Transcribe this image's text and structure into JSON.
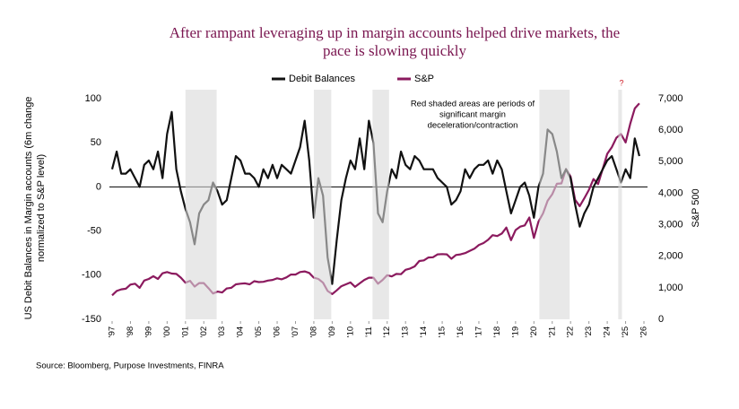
{
  "chart_data": {
    "type": "line",
    "title": [
      "After rampant leveraging up in margin accounts helped drive markets, the",
      "pace is slowing quickly"
    ],
    "y_label": [
      "US Debit Balances in Margin accounts (6m change",
      "normalized to S&P level)"
    ],
    "y2_label": "S&P 500",
    "annotation": [
      "Red shaded areas are periods of",
      "significant margin",
      "deceleration/contraction"
    ],
    "question_mark": "?",
    "source": "Source: Bloomberg, Purpose Investments, FINRA",
    "x": [
      1997.0,
      1997.25,
      1997.5,
      1997.75,
      1998.0,
      1998.25,
      1998.5,
      1998.75,
      1999.0,
      1999.25,
      1999.5,
      1999.75,
      2000.0,
      2000.25,
      2000.5,
      2000.75,
      2001.0,
      2001.25,
      2001.5,
      2001.75,
      2002.0,
      2002.25,
      2002.5,
      2002.75,
      2003.0,
      2003.25,
      2003.5,
      2003.75,
      2004.0,
      2004.25,
      2004.5,
      2004.75,
      2005.0,
      2005.25,
      2005.5,
      2005.75,
      2006.0,
      2006.25,
      2006.5,
      2006.75,
      2007.0,
      2007.25,
      2007.5,
      2007.75,
      2008.0,
      2008.25,
      2008.5,
      2008.75,
      2009.0,
      2009.25,
      2009.5,
      2009.75,
      2010.0,
      2010.25,
      2010.5,
      2010.75,
      2011.0,
      2011.25,
      2011.5,
      2011.75,
      2012.0,
      2012.25,
      2012.5,
      2012.75,
      2013.0,
      2013.25,
      2013.5,
      2013.75,
      2014.0,
      2014.25,
      2014.5,
      2014.75,
      2015.0,
      2015.25,
      2015.5,
      2015.75,
      2016.0,
      2016.25,
      2016.5,
      2016.75,
      2017.0,
      2017.25,
      2017.5,
      2017.75,
      2018.0,
      2018.25,
      2018.5,
      2018.75,
      2019.0,
      2019.25,
      2019.5,
      2019.75,
      2020.0,
      2020.25,
      2020.5,
      2020.75,
      2021.0,
      2021.25,
      2021.5,
      2021.75,
      2022.0,
      2022.25,
      2022.5,
      2022.75,
      2023.0,
      2023.25,
      2023.5,
      2023.75,
      2024.0,
      2024.25,
      2024.5,
      2024.75,
      2025.0,
      2025.25,
      2025.5,
      2025.75
    ],
    "series": [
      {
        "name": "Debit Balances",
        "color": "#111111",
        "values": [
          20,
          40,
          15,
          15,
          20,
          10,
          0,
          25,
          30,
          20,
          40,
          10,
          60,
          85,
          20,
          -5,
          -25,
          -40,
          -65,
          -30,
          -20,
          -15,
          5,
          -5,
          -20,
          -15,
          10,
          35,
          30,
          15,
          15,
          10,
          0,
          20,
          10,
          25,
          10,
          25,
          20,
          15,
          30,
          45,
          75,
          30,
          -35,
          10,
          -10,
          -80,
          -110,
          -60,
          -15,
          10,
          30,
          20,
          55,
          20,
          75,
          50,
          -30,
          -40,
          -5,
          20,
          10,
          40,
          25,
          20,
          35,
          30,
          20,
          20,
          20,
          10,
          5,
          0,
          -20,
          -15,
          -5,
          20,
          10,
          20,
          25,
          25,
          30,
          15,
          30,
          20,
          -5,
          -30,
          -15,
          0,
          5,
          -10,
          -35,
          0,
          15,
          65,
          60,
          40,
          10,
          20,
          10,
          -20,
          -45,
          -30,
          -20,
          0,
          10,
          20,
          30,
          35,
          20,
          5,
          20,
          10,
          55,
          35
        ]
      },
      {
        "name": "S&P",
        "color": "#8b1a5e",
        "axis": "y2",
        "values": [
          760,
          900,
          950,
          970,
          1100,
          1130,
          1000,
          1230,
          1280,
          1370,
          1280,
          1460,
          1500,
          1450,
          1440,
          1320,
          1160,
          1220,
          1040,
          1150,
          1150,
          990,
          820,
          880,
          850,
          980,
          1000,
          1110,
          1130,
          1140,
          1110,
          1210,
          1180,
          1190,
          1230,
          1250,
          1300,
          1270,
          1330,
          1420,
          1420,
          1500,
          1520,
          1470,
          1320,
          1280,
          1160,
          900,
          800,
          920,
          1050,
          1110,
          1170,
          1030,
          1140,
          1250,
          1320,
          1320,
          1130,
          1250,
          1400,
          1360,
          1440,
          1430,
          1570,
          1610,
          1680,
          1850,
          1870,
          1960,
          1970,
          2060,
          2070,
          2060,
          1920,
          2040,
          2060,
          2100,
          2170,
          2240,
          2360,
          2420,
          2520,
          2670,
          2640,
          2720,
          2910,
          2510,
          2830,
          2940,
          2980,
          3230,
          2580,
          3100,
          3360,
          3760,
          3970,
          4300,
          4310,
          4770,
          4530,
          3790,
          3590,
          3840,
          4110,
          4450,
          4290,
          4770,
          5250,
          5460,
          5760,
          5880,
          5610,
          6200,
          6690,
          6850
        ]
      }
    ],
    "shaded_regions": [
      [
        2001.0,
        2002.7
      ],
      [
        2008.0,
        2008.95
      ],
      [
        2011.2,
        2012.1
      ],
      [
        2020.3,
        2021.95
      ],
      [
        2024.6,
        2024.8
      ]
    ],
    "shade_color": "#d9d9d9",
    "xlim": [
      1997,
      2026
    ],
    "xticks": [
      {
        "value": 1997,
        "label": "'97"
      },
      {
        "value": 1998,
        "label": "'98"
      },
      {
        "value": 1999,
        "label": "'99"
      },
      {
        "value": 2000,
        "label": "'00"
      },
      {
        "value": 2001,
        "label": "'01"
      },
      {
        "value": 2002,
        "label": "'02"
      },
      {
        "value": 2003,
        "label": "'03"
      },
      {
        "value": 2004,
        "label": "'04"
      },
      {
        "value": 2005,
        "label": "'05"
      },
      {
        "value": 2006,
        "label": "'06"
      },
      {
        "value": 2007,
        "label": "'07"
      },
      {
        "value": 2008,
        "label": "'08"
      },
      {
        "value": 2009,
        "label": "'09"
      },
      {
        "value": 2010,
        "label": "'10"
      },
      {
        "value": 2011,
        "label": "'11"
      },
      {
        "value": 2012,
        "label": "'12"
      },
      {
        "value": 2013,
        "label": "'13"
      },
      {
        "value": 2014,
        "label": "'14"
      },
      {
        "value": 2015,
        "label": "'15"
      },
      {
        "value": 2016,
        "label": "'16"
      },
      {
        "value": 2017,
        "label": "'17"
      },
      {
        "value": 2018,
        "label": "'18"
      },
      {
        "value": 2019,
        "label": "'19"
      },
      {
        "value": 2020,
        "label": "'20"
      },
      {
        "value": 2021,
        "label": "'21"
      },
      {
        "value": 2022,
        "label": "'22"
      },
      {
        "value": 2023,
        "label": "'23"
      },
      {
        "value": 2024,
        "label": "'24"
      },
      {
        "value": 2025,
        "label": "'25"
      },
      {
        "value": 2026,
        "label": "'26"
      }
    ],
    "ylim": [
      -150,
      100
    ],
    "yticks": [
      -150,
      -100,
      -50,
      0,
      50,
      100
    ],
    "y2lim": [
      0,
      7000
    ],
    "y2ticks": [
      0,
      {
        "value": 1000,
        "label": "1,000"
      },
      {
        "value": 2000,
        "label": "2,000"
      },
      {
        "value": 3000,
        "label": "3,000"
      },
      {
        "value": 4000,
        "label": "4,000"
      },
      {
        "value": 5000,
        "label": "5,000"
      },
      {
        "value": 6000,
        "label": "6,000"
      },
      {
        "value": 7000,
        "label": "7,000"
      }
    ]
  }
}
